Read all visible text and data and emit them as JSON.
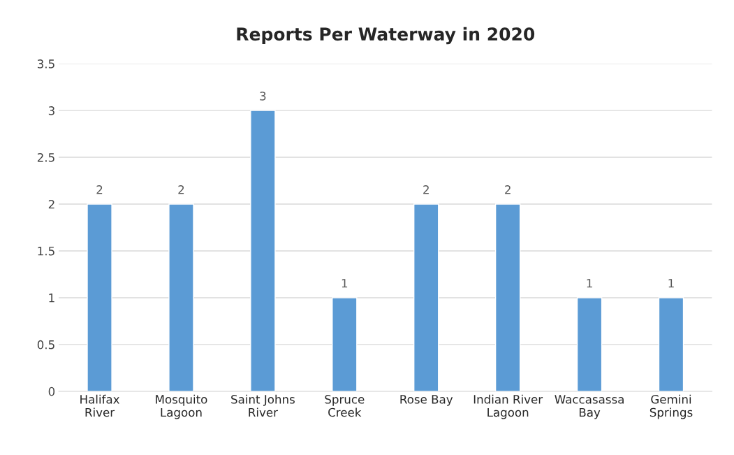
{
  "chart_data": {
    "type": "bar",
    "title": "Reports Per Waterway in 2020",
    "categories": [
      "Halifax\nRiver",
      "Mosquito\nLagoon",
      "Saint Johns\nRiver",
      "Spruce\nCreek",
      "Rose Bay",
      "Indian River\nLagoon",
      "Waccasassa\nBay",
      "Gemini\nSprings"
    ],
    "values": [
      2,
      2,
      3,
      1,
      2,
      2,
      1,
      1
    ],
    "color": "#5b9bd5",
    "ylim": [
      0,
      3.5
    ],
    "yticks": [
      0,
      0.5,
      1,
      1.5,
      2,
      2.5,
      3,
      3.5
    ],
    "grid": "y",
    "data_labels": true
  }
}
